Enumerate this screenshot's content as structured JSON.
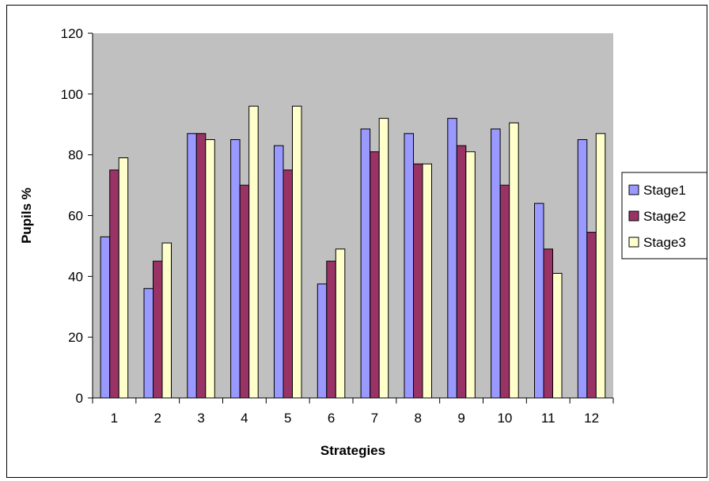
{
  "chart_data": {
    "type": "bar",
    "categories": [
      "1",
      "2",
      "3",
      "4",
      "5",
      "6",
      "7",
      "8",
      "9",
      "10",
      "11",
      "12"
    ],
    "series": [
      {
        "name": "Stage1",
        "color": "#9999ff",
        "values": [
          53,
          36,
          87,
          85,
          83,
          37.5,
          88.5,
          87,
          92,
          88.5,
          64,
          85
        ]
      },
      {
        "name": "Stage2",
        "color": "#993366",
        "values": [
          75,
          45,
          87,
          70,
          75,
          45,
          81,
          77,
          83,
          70,
          49,
          54.5
        ]
      },
      {
        "name": "Stage3",
        "color": "#ffffcc",
        "values": [
          79,
          51,
          85,
          96,
          96,
          49,
          92,
          77,
          81,
          90.5,
          41,
          87
        ]
      }
    ],
    "title": "",
    "xlabel": "Strategies",
    "ylabel": "Pupils %",
    "ylim": [
      0,
      120
    ],
    "yticks": [
      "0",
      "20",
      "40",
      "60",
      "80",
      "100",
      "120"
    ],
    "grid": false,
    "legend": "right",
    "plot_background": "#c0c0c0"
  }
}
